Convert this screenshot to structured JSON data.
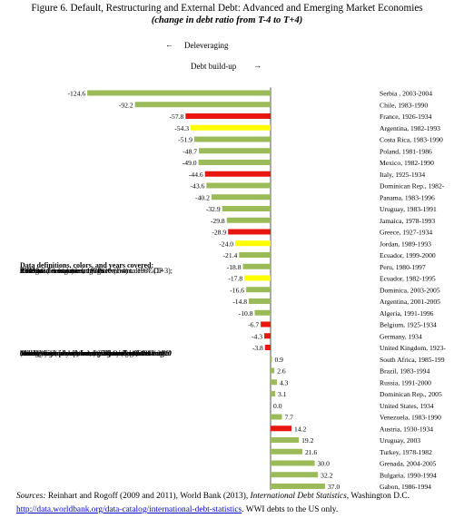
{
  "title": "Figure 6. Default, Restructuring and External Debt: Advanced and Emerging Market Economies",
  "subtitle": "(change in debt ratio from T-4 to T+4)",
  "legend_deleveraging": "Deleveraging",
  "legend_debt_buildup": "Debt build-up",
  "arrow_left": "←",
  "arrow_right": "→",
  "notes": {
    "heading": "Data definitions, colors, and years covered:",
    "advanced_heading": "Advanced economies, 1930s",
    "advanced_lines": [
      "External (Foreign) central government debt/GDP",
      "T=1934",
      "Change in debt ratio from 1930 (T-4) to 1937 (T+3);",
      "1938 has several missing observations.",
      "Red bars."
    ],
    "emerging_heading": "Middle-high income emerging markets, 1978-2010",
    "emerging_lines": [
      "Total (public plus private) external debt/GNI",
      "(Gross National Income, World Bank convention)",
      "T=last year (or exit) from restructuring/default spell",
      "Change in debt ratio from (T-4) to (T+4).",
      "Green bars and yellow bars. The yellow bars single",
      " out the cases where there is debt reduction over the",
      "entire 9-year period, but there is a  significant"
    ]
  },
  "sources": {
    "label": "Sources:",
    "text1": " Reinhart and Rogoff (2009 and 2011), World Bank (2013), ",
    "italic": "International Debt Statistics",
    "text2": ", Washington D.C.",
    "link": "http://data.worldbank.org/data-catalog/international-debt-statistics",
    "text3": ". WWI debts to the US only."
  },
  "colors": {
    "green": "#9bbb59",
    "red": "#e8160f",
    "yellow": "#ffff00",
    "axis": "#555555"
  },
  "chart_data": {
    "type": "bar",
    "orientation": "horizontal",
    "categories": [
      "Serbia , 2003-2004",
      "Chile, 1983-1990",
      "France, 1926-1934",
      "Argentina, 1982-1993",
      "Costa Rica, 1983-1990",
      "Poland, 1981-1986",
      "Mexico, 1982-1990",
      "Italy, 1925-1934",
      "Dominican Rep., 1982-",
      "Panama, 1983-1996",
      "Uruguay, 1983-1991",
      "Jamaica, 1978-1993",
      "Greece, 1927-1934",
      "Jordan, 1989-1993",
      "Ecuador, 1999-2000",
      "Peru, 1980-1997",
      "Ecuador, 1982-1995",
      "Dominica, 2003-2005",
      "Argentina, 2001-2005",
      "Algeria, 1991-1996",
      "Belgium, 1925-1934",
      "Germany, 1934",
      "United Kingdom, 1923-",
      "South Africa, 1985-199",
      "Brazil, 1983-1994",
      "Russia, 1991-2000",
      "Dominican Rep., 2005",
      "United States, 1934",
      "Venezuela, 1983-1990",
      "Austria, 1930-1934",
      "Uruguay, 2003",
      "Turkey, 1978-1982",
      "Grenada, 2004-2005",
      "Bulgaria, 1990-1994",
      "Gabon, 1986-1994"
    ],
    "values": [
      -124.6,
      -92.2,
      -57.8,
      -54.3,
      -51.9,
      -48.7,
      -49.0,
      -44.6,
      -43.6,
      -40.2,
      -32.9,
      -29.8,
      -28.9,
      -24.0,
      -21.4,
      -18.8,
      -17.8,
      -16.6,
      -14.8,
      -10.8,
      -6.7,
      -4.3,
      -3.8,
      0.9,
      2.6,
      4.3,
      3.1,
      0.0,
      7.7,
      14.2,
      19.2,
      21.6,
      30.0,
      32.2,
      37.0
    ],
    "value_labels": [
      "-124.6",
      "-92.2",
      "-57.8",
      "-54.3",
      "-51.9",
      "-48.7",
      "-49.0",
      "-44.6",
      "-43.6",
      "-40.2",
      "-32.9",
      "-29.8",
      "-28.9",
      "-24.0",
      "-21.4",
      "-18.8",
      "-17.8",
      "-16.6",
      "-14.8",
      "-10.8",
      "-6.7",
      "-4.3",
      "-3.8",
      "0.9",
      "2.6",
      "4.3",
      "3.1",
      "0.0",
      "7.7",
      "14.2",
      "19.2",
      "21.6",
      "30.0",
      "32.2",
      "37.0"
    ],
    "bar_colors": [
      "green",
      "green",
      "red",
      "yellow",
      "green",
      "green",
      "green",
      "red",
      "green",
      "green",
      "green",
      "green",
      "red",
      "yellow",
      "green",
      "green",
      "yellow",
      "green",
      "green",
      "green",
      "red",
      "red",
      "red",
      "green",
      "green",
      "green",
      "green",
      "green",
      "green",
      "red",
      "green",
      "green",
      "green",
      "green",
      "green"
    ],
    "xlim": [
      -130,
      40
    ],
    "grid": false,
    "legend": "none"
  }
}
